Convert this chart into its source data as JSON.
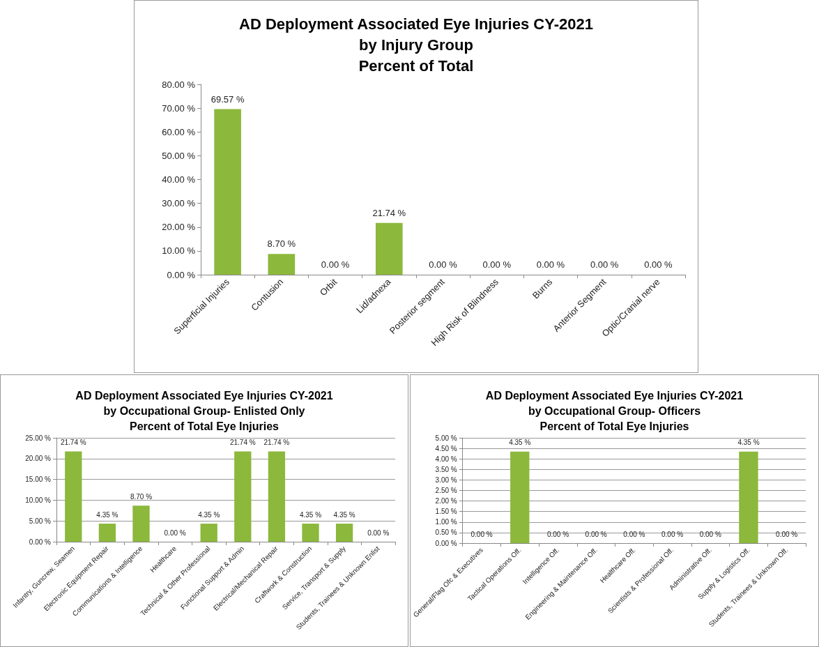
{
  "chart_data": [
    {
      "type": "bar",
      "title": "AD Deployment Associated Eye Injuries CY-2021\nby Injury Group\nPercent of Total",
      "categories": [
        "Superficial Injuries",
        "Contusion",
        "Orbit",
        "Lid/adnexa",
        "Posterior segment",
        "High Risk of Blindness",
        "Burns",
        "Anterior Segment",
        "Optic/Cranial nerve"
      ],
      "values": [
        69.57,
        8.7,
        0,
        21.74,
        0,
        0,
        0,
        0,
        0
      ],
      "value_labels": [
        "69.57 %",
        "8.70 %",
        "0.00 %",
        "21.74 %",
        "0.00 %",
        "0.00 %",
        "0.00 %",
        "0.00 %",
        "0.00 %"
      ],
      "color": "#8cb83c",
      "ylim": [
        0,
        80
      ],
      "yticks": [
        {
          "value": 0,
          "label": "0.00 %"
        },
        {
          "value": 10,
          "label": "10.00 %"
        },
        {
          "value": 20,
          "label": "20.00 %"
        },
        {
          "value": 30,
          "label": "30.00 %"
        },
        {
          "value": 40,
          "label": "40.00 %"
        },
        {
          "value": 50,
          "label": "50.00 %"
        },
        {
          "value": 60,
          "label": "60.00 %"
        },
        {
          "value": 70,
          "label": "70.00 %"
        },
        {
          "value": 80,
          "label": "80.00 %"
        }
      ],
      "grid": false
    },
    {
      "type": "bar",
      "title": "AD Deployment Associated Eye Injuries CY-2021\nby Occupational Group- Enlisted Only\nPercent of Total Eye Injuries",
      "categories": [
        "Infantry, Guncrew, Seamen",
        "Electronic Equipment Repair",
        "Communications & Intelligence",
        "Healthcare",
        "Technical & Other Professional",
        "Functional Support & Admin",
        "Electrical/Mechanical Repair",
        "Craftwork & Construction",
        "Service, Transport & Supply",
        "Students, Trainees & Unknown Enlist"
      ],
      "values": [
        21.74,
        4.35,
        8.7,
        0,
        4.35,
        21.74,
        21.74,
        4.35,
        4.35,
        0
      ],
      "value_labels": [
        "21.74 %",
        "4.35 %",
        "8.70 %",
        "0.00 %",
        "4.35 %",
        "21.74 %",
        "21.74 %",
        "4.35 %",
        "4.35 %",
        "0.00 %"
      ],
      "color": "#8cb83c",
      "ylim": [
        0,
        25
      ],
      "yticks": [
        {
          "value": 0,
          "label": "0.00 %"
        },
        {
          "value": 5,
          "label": "5.00 %"
        },
        {
          "value": 10,
          "label": "10.00 %"
        },
        {
          "value": 15,
          "label": "15.00 %"
        },
        {
          "value": 20,
          "label": "20.00 %"
        },
        {
          "value": 25,
          "label": "25.00 %"
        }
      ],
      "grid": "y"
    },
    {
      "type": "bar",
      "title": "AD Deployment Associated Eye Injuries CY-2021\nby Occupational Group- Officers\nPercent of Total Eye Injuries",
      "categories": [
        "General/Flag Ofc & Executives",
        "Tactical Operations Off.",
        "Intelligence Off.",
        "Engineering & Maintenance Off.",
        "Healthcare Off.",
        "Scientists & Professional Off.",
        "Administrative Off.",
        "Supply & Logistics Off.",
        "Students, Trainees & Unknown Off."
      ],
      "values": [
        0,
        4.35,
        0,
        0,
        0,
        0,
        0,
        4.35,
        0
      ],
      "value_labels": [
        "0.00 %",
        "4.35 %",
        "0.00 %",
        "0.00 %",
        "0.00 %",
        "0.00 %",
        "0.00 %",
        "4.35 %",
        "0.00 %"
      ],
      "color": "#8cb83c",
      "ylim": [
        0,
        5
      ],
      "yticks": [
        {
          "value": 0,
          "label": "0.00 %"
        },
        {
          "value": 0.5,
          "label": "0.50 %"
        },
        {
          "value": 1,
          "label": "1.00 %"
        },
        {
          "value": 1.5,
          "label": "1.50 %"
        },
        {
          "value": 2,
          "label": "2.00 %"
        },
        {
          "value": 2.5,
          "label": "2.50 %"
        },
        {
          "value": 3,
          "label": "3.00 %"
        },
        {
          "value": 3.5,
          "label": "3.50 %"
        },
        {
          "value": 4,
          "label": "4.00 %"
        },
        {
          "value": 4.5,
          "label": "4.50 %"
        },
        {
          "value": 5,
          "label": "5.00 %"
        }
      ],
      "grid": "y"
    }
  ]
}
